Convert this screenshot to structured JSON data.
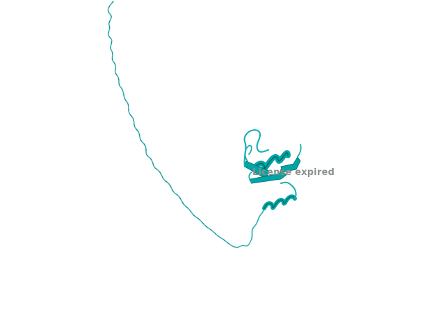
{
  "scene": {
    "background_color": "#ffffff",
    "structure_color": "#00b3b3",
    "structure_dark_color": "#007a7a",
    "structure_light_color": "#7fd8d8"
  },
  "watermark": {
    "text": "License expired"
  }
}
